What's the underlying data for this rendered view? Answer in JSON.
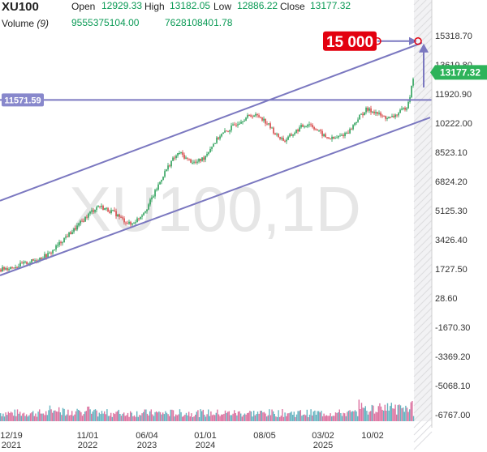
{
  "header": {
    "symbol": "XU100",
    "open_label": "Open",
    "open_value": "12929.33",
    "high_label": "High",
    "high_value": "13182.05",
    "low_label": "Low",
    "low_value": "12886.22",
    "close_label": "Close",
    "close_value": "13177.32",
    "volume_label": "Volume",
    "volume_param": "(9)",
    "volume_value_1": "9555375104.00",
    "volume_value_2": "7628108401.78"
  },
  "colors": {
    "up": "#1e9a4e",
    "down": "#d43a3a",
    "channel": "#7b78c0",
    "price_badge": "#2db35a",
    "level_badge": "#8888cc",
    "target_badge": "#e3000f",
    "volume_a": "#4ba7b5",
    "volume_b": "#d65b8f"
  },
  "chart_data": {
    "type": "candlestick",
    "watermark": "XU100,1D",
    "last_price_label": "13177.32",
    "horizontal_level_label": "11571.59",
    "target_label": "15 000",
    "y_ticks": [
      "15318.70",
      "13619.80",
      "11920.90",
      "10222.00",
      "8523.10",
      "6824.20",
      "5125.30",
      "3426.40",
      "1727.50",
      "28.60",
      "-1670.30",
      "-3369.20",
      "-5068.10",
      "-6767.00"
    ],
    "x_ticks": [
      {
        "top": "12/19",
        "bottom": "2021"
      },
      {
        "top": "11/01",
        "bottom": "2022"
      },
      {
        "top": "06/04",
        "bottom": "2023"
      },
      {
        "top": "01/01",
        "bottom": "2024"
      },
      {
        "top": "08/05",
        "bottom": ""
      },
      {
        "top": "03/02",
        "bottom": "2025"
      },
      {
        "top": "10/02",
        "bottom": ""
      }
    ],
    "price_path": [
      [
        0,
        1700
      ],
      [
        20,
        1900
      ],
      [
        40,
        2200
      ],
      [
        60,
        2600
      ],
      [
        70,
        3100
      ],
      [
        80,
        3600
      ],
      [
        90,
        4000
      ],
      [
        100,
        4500
      ],
      [
        110,
        5000
      ],
      [
        120,
        5400
      ],
      [
        130,
        5200
      ],
      [
        140,
        5000
      ],
      [
        150,
        4600
      ],
      [
        160,
        4300
      ],
      [
        170,
        4700
      ],
      [
        180,
        5300
      ],
      [
        190,
        6200
      ],
      [
        200,
        7200
      ],
      [
        210,
        8000
      ],
      [
        220,
        8500
      ],
      [
        230,
        8100
      ],
      [
        240,
        7900
      ],
      [
        250,
        8200
      ],
      [
        260,
        8900
      ],
      [
        270,
        9500
      ],
      [
        280,
        9800
      ],
      [
        290,
        10200
      ],
      [
        300,
        10500
      ],
      [
        310,
        10700
      ],
      [
        320,
        10600
      ],
      [
        330,
        10100
      ],
      [
        340,
        9500
      ],
      [
        350,
        9200
      ],
      [
        360,
        9600
      ],
      [
        370,
        10000
      ],
      [
        380,
        10200
      ],
      [
        390,
        9800
      ],
      [
        400,
        9400
      ],
      [
        410,
        9300
      ],
      [
        420,
        9500
      ],
      [
        430,
        9800
      ],
      [
        440,
        10500
      ],
      [
        450,
        11000
      ],
      [
        460,
        10900
      ],
      [
        470,
        10600
      ],
      [
        480,
        10500
      ],
      [
        490,
        10800
      ],
      [
        500,
        11200
      ],
      [
        505,
        12000
      ],
      [
        509,
        13177
      ]
    ],
    "channel_upper": [
      [
        0,
        5700
      ],
      [
        520,
        14900
      ]
    ],
    "channel_lower": [
      [
        0,
        1350
      ],
      [
        530,
        10550
      ]
    ],
    "level": 11571.59,
    "target": 15000
  }
}
